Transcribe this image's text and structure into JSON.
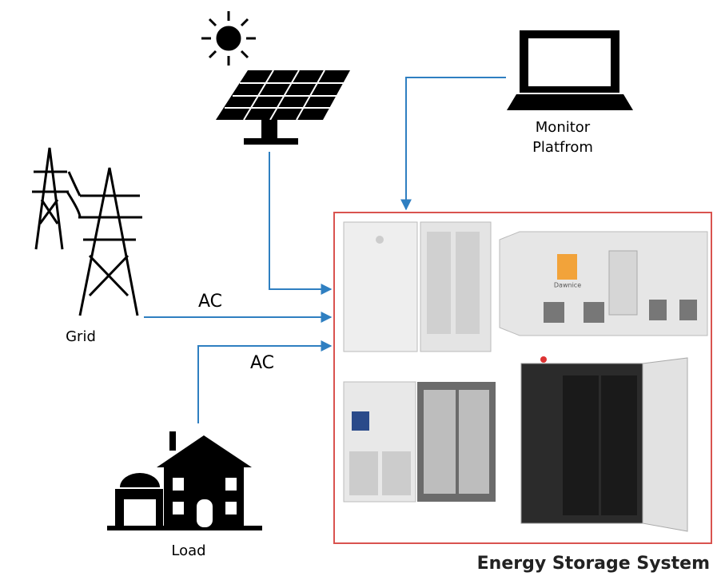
{
  "monitor": {
    "label_lines": [
      "Monitor",
      "Platfrom"
    ]
  },
  "grid": {
    "label": "Grid",
    "link_label": "AC"
  },
  "load": {
    "label": "Load",
    "link_label": "AC"
  },
  "system": {
    "title": "Energy Storage System",
    "logo": "Dawnice"
  }
}
